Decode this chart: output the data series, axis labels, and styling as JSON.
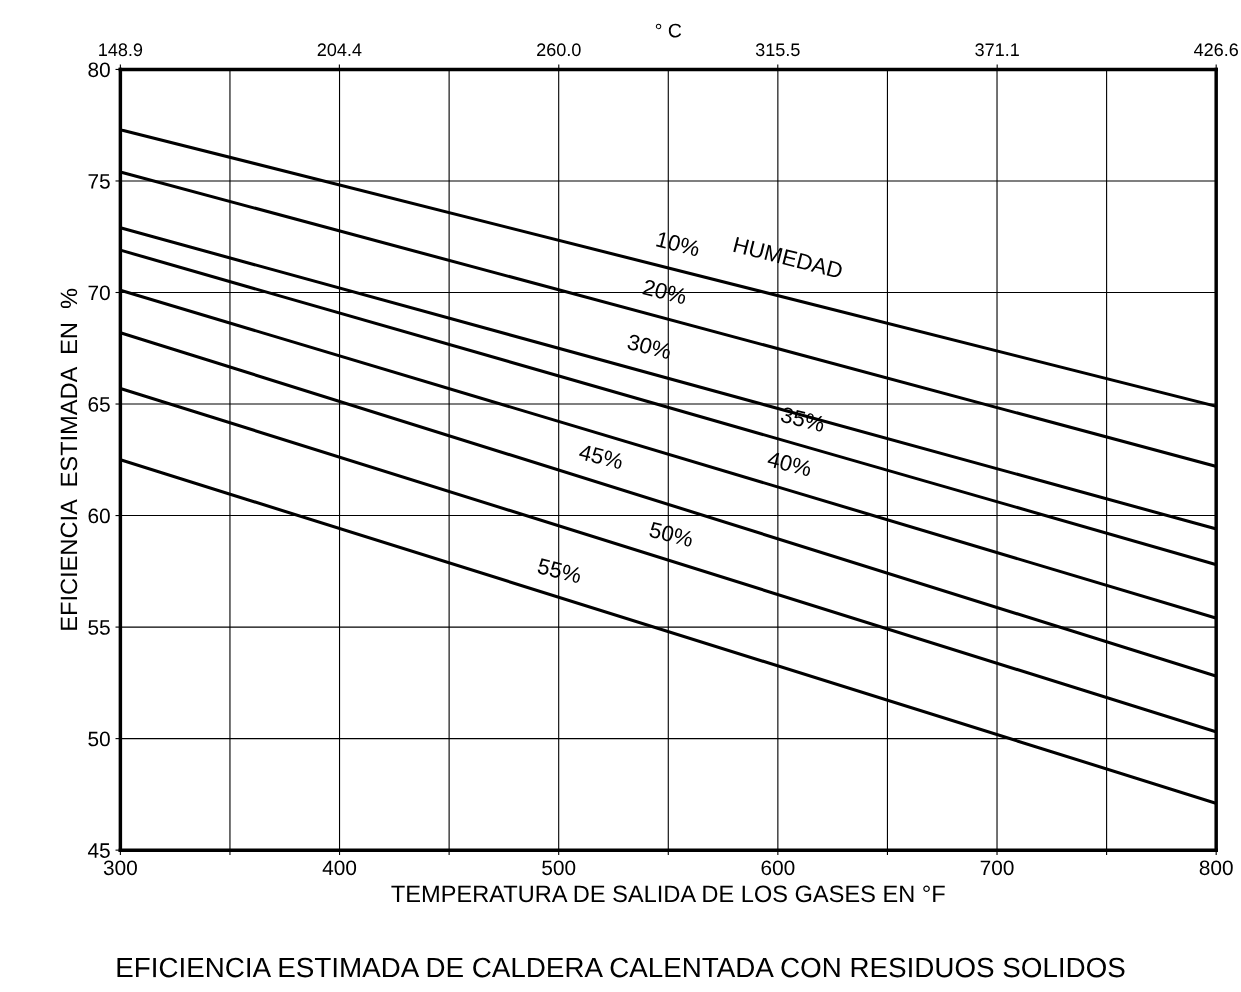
{
  "chart_data": {
    "type": "line",
    "title": "EFICIENCIA ESTIMADA DE CALDERA CALENTADA CON RESIDUOS SOLIDOS",
    "xlabel": "TEMPERATURA DE SALIDA DE LOS GASES EN °F",
    "ylabel": "EFICIENCIA  ESTIMADA  EN  %",
    "x2label": "° C",
    "x": [
      300,
      800
    ],
    "series": [
      {
        "name": "10%",
        "color": "#000000",
        "values": [
          77.3,
          64.9
        ]
      },
      {
        "name": "20%",
        "color": "#000000",
        "values": [
          75.4,
          62.2
        ]
      },
      {
        "name": "30%",
        "color": "#000000",
        "values": [
          72.9,
          59.4
        ]
      },
      {
        "name": "35%",
        "color": "#000000",
        "values": [
          71.9,
          57.8
        ]
      },
      {
        "name": "40%",
        "color": "#000000",
        "values": [
          70.1,
          55.4
        ]
      },
      {
        "name": "45%",
        "color": "#000000",
        "values": [
          68.2,
          52.8
        ]
      },
      {
        "name": "50%",
        "color": "#000000",
        "values": [
          65.7,
          50.3
        ]
      },
      {
        "name": "55%",
        "color": "#000000",
        "values": [
          62.5,
          47.1
        ]
      }
    ],
    "annotations": [
      "HUMEDAD"
    ],
    "xlim": [
      300,
      800
    ],
    "xticks": [
      300,
      {
        "value": 350,
        "label": null
      },
      400,
      {
        "value": 450,
        "label": null
      },
      500,
      {
        "value": 550,
        "label": null
      },
      600,
      {
        "value": 650,
        "label": null
      },
      700,
      {
        "value": 750,
        "label": null
      },
      800
    ],
    "x2lim": [
      148.9,
      426.6
    ],
    "x2ticks": [
      148.9,
      204.4,
      {
        "value": 260.0,
        "label": "260.0"
      },
      315.5,
      371.1,
      426.6
    ],
    "ylim": [
      45,
      80
    ],
    "yticks": [
      45,
      50,
      55,
      60,
      65,
      70,
      75,
      80
    ],
    "grid": true,
    "marker": "none",
    "line_style": "solid",
    "legend": false
  }
}
